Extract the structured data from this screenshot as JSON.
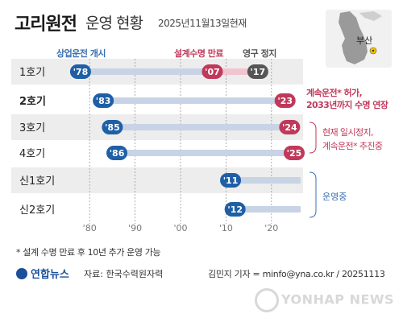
{
  "title": {
    "main": "고리원전",
    "sub": "운영 현황",
    "date": "2025년11월13일현재"
  },
  "map": {
    "label": "부산",
    "marker_icon": "radiation-icon"
  },
  "legend": {
    "start": "상업운전 개시",
    "end": "설계수명 만료",
    "stop": "영구 정지"
  },
  "notes": {
    "extension_line1": "계속운전* 허가,",
    "extension_line2": "2033년까지 수명 연장",
    "pending_line1": "현재 일시정지,",
    "pending_line2": "계속운전* 추진중",
    "operating": "운영중"
  },
  "footnote": "* 설계 수명 만료 후 10년 추가 운영 가능",
  "source": "자료: 한국수력원자력",
  "credit": "김민지 기자 = minfo@yna.co.kr / 20251113",
  "logo": "연합뉴스",
  "watermark": "YONHAP NEWS",
  "colors": {
    "blue": "#1f5fa6",
    "red": "#c0395a",
    "gray": "#555555",
    "bar_light": "#c8d3e6",
    "bar_pink": "#f1c4cf",
    "row_band": "#ededed"
  },
  "chart_data": {
    "type": "range",
    "x_axis": {
      "range": [
        1975,
        2025
      ],
      "ticks": [
        1980,
        1990,
        2000,
        2010,
        2020
      ],
      "tick_labels": [
        "'80",
        "'90",
        "'00",
        "'10",
        "'20"
      ]
    },
    "rows": [
      {
        "name": "1호기",
        "bold": false,
        "start": 1978,
        "start_label": "'78",
        "end": 2007,
        "end_label": "'07",
        "stop": 2017,
        "stop_label": "'17"
      },
      {
        "name": "2호기",
        "bold": true,
        "start": 1983,
        "start_label": "'83",
        "end": 2023,
        "end_label": "'23",
        "stop": null,
        "stop_label": null
      },
      {
        "name": "3호기",
        "bold": false,
        "start": 1985,
        "start_label": "'85",
        "end": 2024,
        "end_label": "'24",
        "stop": null,
        "stop_label": null
      },
      {
        "name": "4호기",
        "bold": false,
        "start": 1986,
        "start_label": "'86",
        "end": 2025,
        "end_label": "'25",
        "stop": null,
        "stop_label": null
      },
      {
        "name": "신1호기",
        "bold": false,
        "start": 2011,
        "start_label": "'11",
        "end": null,
        "end_label": null,
        "stop": null,
        "stop_label": null
      },
      {
        "name": "신2호기",
        "bold": false,
        "start": 2012,
        "start_label": "'12",
        "end": null,
        "end_label": null,
        "stop": null,
        "stop_label": null
      }
    ]
  }
}
